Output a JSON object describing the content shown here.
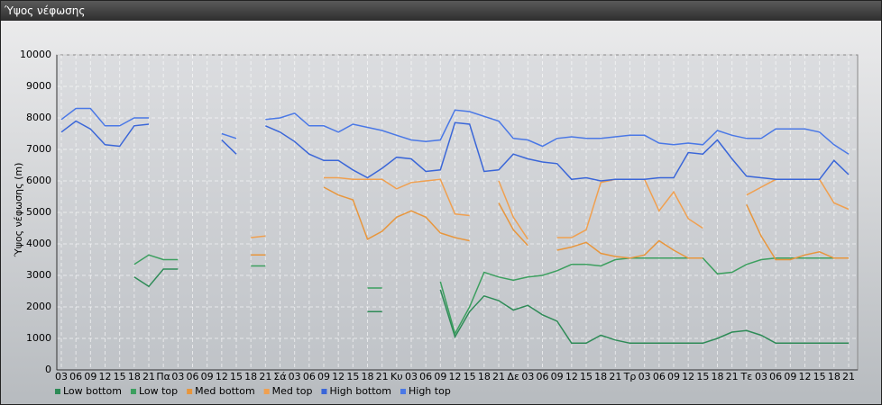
{
  "chart_data": {
    "type": "line",
    "title": "Ύψος νέφωσης",
    "ylabel": "Ύψος νέφωσης (m)",
    "categories": [
      "03",
      "06",
      "09",
      "12",
      "15",
      "18",
      "21",
      "Πα",
      "03",
      "06",
      "09",
      "12",
      "15",
      "18",
      "21",
      "Σά",
      "03",
      "06",
      "09",
      "12",
      "15",
      "18",
      "21",
      "Κυ",
      "03",
      "06",
      "09",
      "12",
      "15",
      "18",
      "21",
      "Δε",
      "03",
      "06",
      "09",
      "12",
      "15",
      "18",
      "21",
      "Τρ",
      "03",
      "06",
      "09",
      "12",
      "15",
      "18",
      "21",
      "Τε",
      "03",
      "06",
      "09",
      "12",
      "15",
      "18",
      "21"
    ],
    "series": [
      {
        "name": "Low bottom",
        "color": "#2e8b57",
        "values": [
          null,
          null,
          null,
          null,
          null,
          2950,
          2650,
          3200,
          3200,
          null,
          null,
          null,
          null,
          null,
          null,
          null,
          null,
          null,
          null,
          null,
          null,
          1850,
          1850,
          null,
          null,
          null,
          2550,
          1050,
          1850,
          2350,
          2200,
          1900,
          2050,
          1750,
          1550,
          850,
          850,
          1100,
          950,
          850,
          850,
          850,
          850,
          850,
          850,
          1000,
          1200,
          1250,
          1100,
          850,
          850,
          850,
          850,
          850,
          850
        ]
      },
      {
        "name": "Low top",
        "color": "#3c9f5f",
        "values": [
          null,
          null,
          null,
          null,
          null,
          3350,
          3650,
          3500,
          3500,
          null,
          null,
          null,
          null,
          3300,
          3300,
          null,
          null,
          null,
          null,
          null,
          null,
          2600,
          2600,
          null,
          null,
          null,
          2800,
          1150,
          2000,
          3100,
          2950,
          2850,
          2950,
          3000,
          3150,
          3350,
          3350,
          3300,
          3500,
          3550,
          3550,
          3550,
          3550,
          3550,
          3550,
          3050,
          3100,
          3350,
          3500,
          3550,
          3550,
          3550,
          3550,
          3550,
          3550
        ]
      },
      {
        "name": "Med bottom",
        "color": "#e8963c",
        "values": [
          null,
          null,
          null,
          null,
          null,
          null,
          null,
          null,
          null,
          null,
          null,
          null,
          null,
          3650,
          3650,
          null,
          null,
          null,
          5800,
          5550,
          5400,
          4150,
          4400,
          4850,
          5050,
          4850,
          4350,
          4200,
          4100,
          null,
          5300,
          4450,
          3950,
          null,
          3800,
          3900,
          4050,
          3700,
          3600,
          3550,
          3650,
          4100,
          3800,
          3550,
          3550,
          null,
          null,
          5250,
          4250,
          3500,
          3500,
          3650,
          3750,
          3550,
          3550
        ]
      },
      {
        "name": "Med top",
        "color": "#f0a050",
        "values": [
          null,
          null,
          null,
          null,
          null,
          null,
          null,
          null,
          null,
          null,
          null,
          null,
          null,
          4200,
          4250,
          null,
          null,
          null,
          6100,
          6100,
          6050,
          6050,
          6050,
          5750,
          5950,
          6000,
          6050,
          4950,
          4900,
          null,
          6000,
          4850,
          4150,
          null,
          4200,
          4200,
          4450,
          5950,
          6050,
          6050,
          6050,
          5050,
          5650,
          4800,
          4500,
          null,
          null,
          5550,
          5800,
          6050,
          6050,
          6050,
          6050,
          5300,
          5100
        ]
      },
      {
        "name": "High bottom",
        "color": "#3a66d8",
        "values": [
          7550,
          7900,
          7650,
          7150,
          7100,
          7750,
          7800,
          null,
          null,
          null,
          null,
          7300,
          6850,
          null,
          7750,
          7550,
          7250,
          6850,
          6650,
          6650,
          6350,
          6100,
          6400,
          6750,
          6700,
          6300,
          6350,
          7850,
          7800,
          6300,
          6350,
          6850,
          6700,
          6600,
          6550,
          6050,
          6100,
          6000,
          6050,
          6050,
          6050,
          6100,
          6100,
          6900,
          6850,
          7300,
          6700,
          6150,
          6100,
          6050,
          6050,
          6050,
          6050,
          6650,
          6200
        ]
      },
      {
        "name": "High top",
        "color": "#4a78e6",
        "values": [
          7950,
          8300,
          8300,
          7750,
          7750,
          8000,
          8000,
          null,
          null,
          null,
          null,
          7500,
          7350,
          null,
          7950,
          8000,
          8150,
          7750,
          7750,
          7550,
          7800,
          7700,
          7600,
          7450,
          7300,
          7250,
          7300,
          8250,
          8200,
          8050,
          7900,
          7350,
          7300,
          7100,
          7350,
          7400,
          7350,
          7350,
          7400,
          7450,
          7450,
          7200,
          7150,
          7200,
          7150,
          7600,
          7450,
          7350,
          7350,
          7650,
          7650,
          7650,
          7550,
          7150,
          6850
        ]
      }
    ],
    "ylim": [
      0,
      10000
    ],
    "yticks": [
      0,
      1000,
      2000,
      3000,
      4000,
      5000,
      6000,
      7000,
      8000,
      9000,
      10000
    ],
    "grid": true,
    "legend": "bottom"
  }
}
